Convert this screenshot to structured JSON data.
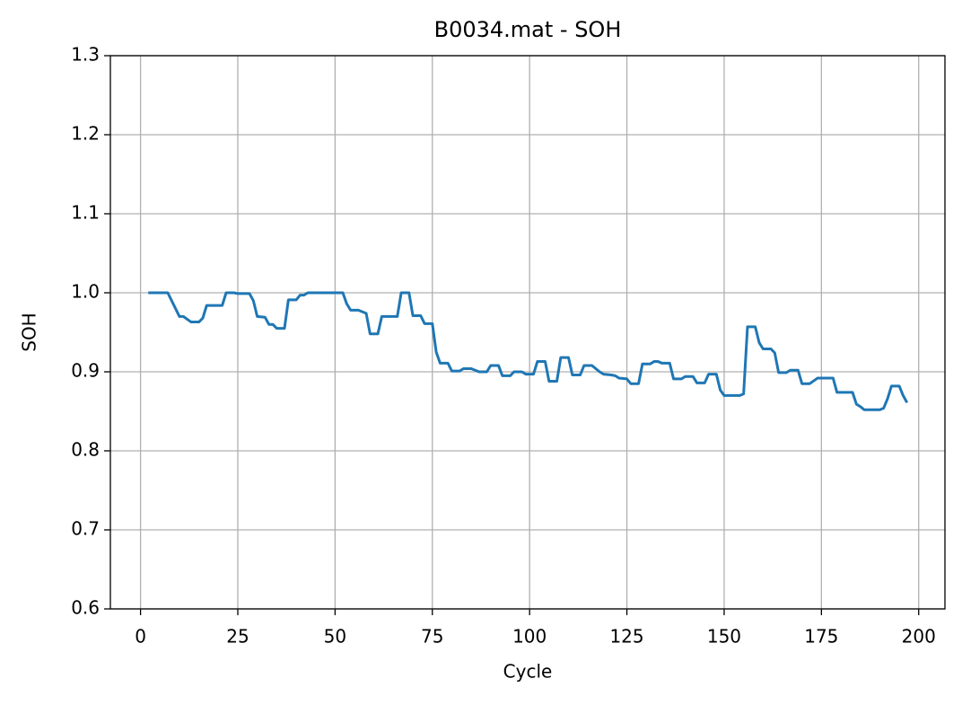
{
  "chart_data": {
    "type": "line",
    "title": "B0034.mat - SOH",
    "xlabel": "Cycle",
    "ylabel": "SOH",
    "xlim": [
      -7.75,
      206.75
    ],
    "ylim": [
      0.6,
      1.3
    ],
    "xticks": [
      0,
      25,
      50,
      75,
      100,
      125,
      150,
      175,
      200
    ],
    "yticks": [
      0.6,
      0.7,
      0.8,
      0.9,
      {
        "value": 1,
        "label": "1.0"
      },
      1.1,
      1.2,
      1.3
    ],
    "grid": true,
    "x": [
      2,
      7,
      10,
      11,
      13,
      15,
      16,
      17,
      21,
      22,
      24,
      25,
      28,
      29,
      30,
      32,
      33,
      34,
      35,
      37,
      38,
      40,
      41,
      42,
      43,
      52,
      53,
      54,
      56,
      58,
      59,
      61,
      62,
      66,
      67,
      69,
      70,
      72,
      73,
      75,
      76,
      77,
      79,
      80,
      82,
      83,
      85,
      87,
      89,
      90,
      92,
      93,
      95,
      96,
      98,
      99,
      101,
      102,
      104,
      105,
      107,
      108,
      110,
      111,
      113,
      114,
      116,
      118,
      119,
      121,
      122,
      123,
      125,
      126,
      128,
      129,
      131,
      132,
      133,
      134,
      136,
      137,
      139,
      140,
      142,
      143,
      145,
      146,
      148,
      149,
      150,
      154,
      155,
      156,
      158,
      159,
      160,
      162,
      163,
      164,
      166,
      167,
      169,
      170,
      172,
      174,
      178,
      179,
      183,
      184,
      185,
      186,
      190,
      191,
      192,
      193,
      195,
      196,
      197
    ],
    "series": [
      {
        "name": "SOH",
        "color": "#1f77b4",
        "values": [
          1.0,
          1.0,
          0.97,
          0.97,
          0.963,
          0.963,
          0.968,
          0.984,
          0.984,
          1.0,
          1.0,
          0.999,
          0.999,
          0.99,
          0.97,
          0.969,
          0.96,
          0.96,
          0.955,
          0.955,
          0.991,
          0.991,
          0.997,
          0.997,
          1.0,
          1.0,
          0.986,
          0.978,
          0.978,
          0.974,
          0.948,
          0.948,
          0.97,
          0.97,
          1.0,
          1.0,
          0.971,
          0.971,
          0.961,
          0.961,
          0.925,
          0.911,
          0.911,
          0.901,
          0.901,
          0.904,
          0.904,
          0.9,
          0.9,
          0.908,
          0.908,
          0.895,
          0.895,
          0.9,
          0.9,
          0.897,
          0.897,
          0.913,
          0.913,
          0.888,
          0.888,
          0.918,
          0.918,
          0.896,
          0.896,
          0.908,
          0.908,
          0.9,
          0.897,
          0.896,
          0.895,
          0.892,
          0.891,
          0.885,
          0.885,
          0.91,
          0.91,
          0.913,
          0.913,
          0.911,
          0.911,
          0.891,
          0.891,
          0.894,
          0.894,
          0.886,
          0.886,
          0.897,
          0.897,
          0.877,
          0.87,
          0.87,
          0.872,
          0.957,
          0.957,
          0.937,
          0.929,
          0.929,
          0.924,
          0.899,
          0.899,
          0.902,
          0.902,
          0.885,
          0.885,
          0.892,
          0.892,
          0.874,
          0.874,
          0.859,
          0.856,
          0.852,
          0.852,
          0.854,
          0.866,
          0.882,
          0.882,
          0.87,
          0.861
        ]
      }
    ]
  }
}
